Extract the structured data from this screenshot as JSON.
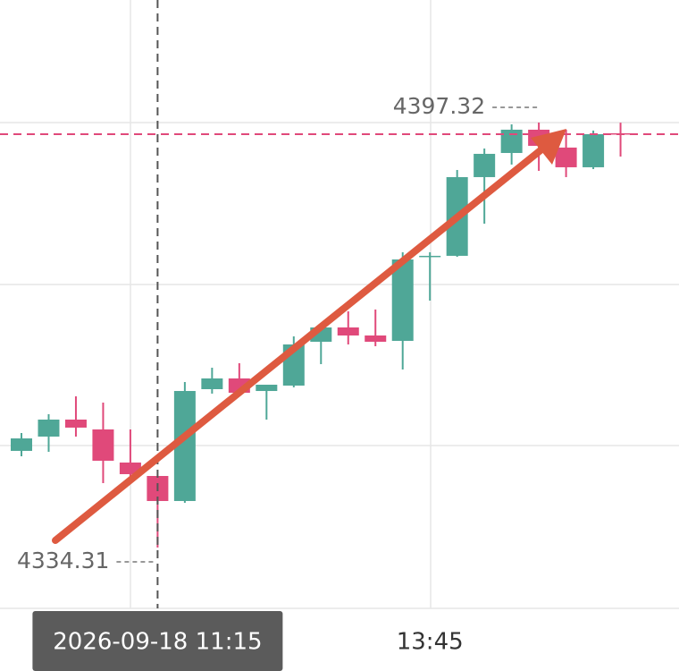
{
  "chart_data": {
    "type": "candlestick",
    "categories": [
      null,
      null,
      null,
      null,
      null,
      "2026-09-18 11:15",
      null,
      null,
      null,
      null,
      null,
      null,
      null,
      null,
      null,
      "13:45",
      null,
      null,
      null,
      null,
      null,
      null,
      null
    ],
    "highlight": 5,
    "series": [
      {
        "up_color": "#4fa797",
        "down_color": "#e0497a",
        "open": [
          4348.64,
          4350.76,
          4353.28,
          4351.82,
          4346.91,
          4344.92,
          4341.21,
          4357.79,
          4359.38,
          4357.52,
          4358.32,
          4364.82,
          4366.94,
          4365.75,
          4364.95,
          4377.42,
          4377.56,
          4389.23,
          4392.81,
          4396.26,
          4393.61,
          4390.69,
          4395.73
        ],
        "high": [
          4351.29,
          4354.08,
          4356.73,
          4355.8,
          4351.82,
          4344.92,
          4358.85,
          4360.97,
          4361.64,
          4358.45,
          4365.62,
          4366.94,
          4369.33,
          4369.6,
          4378.09,
          4378.09,
          4390.29,
          4393.47,
          4397.05,
          4397.32,
          4396.26,
          4396.13,
          4397.3
        ],
        "low": [
          4347.84,
          4348.5,
          4350.76,
          4343.86,
          4344.53,
          4334.31,
          4340.94,
          4357.13,
          4356.86,
          4353.28,
          4358.06,
          4361.5,
          4364.42,
          4364.16,
          4360.71,
          4370.92,
          4377.42,
          4382.33,
          4391.09,
          4390.16,
          4389.23,
          4390.42,
          4392.28
        ],
        "close": [
          4350.49,
          4353.28,
          4352.09,
          4347.18,
          4345.19,
          4341.21,
          4357.52,
          4359.38,
          4357.26,
          4358.45,
          4364.42,
          4366.94,
          4365.75,
          4364.82,
          4377.02,
          4377.56,
          4389.23,
          4392.68,
          4396.26,
          4393.87,
          4390.69,
          4395.6,
          4395.6
        ]
      }
    ],
    "ylim": [
      4325.29,
      4415.49
    ],
    "yticks": [
      4325.29,
      4349.43,
      4373.31,
      4397.32
    ],
    "grid": true,
    "price_line_color": "#e0497a"
  }
}
